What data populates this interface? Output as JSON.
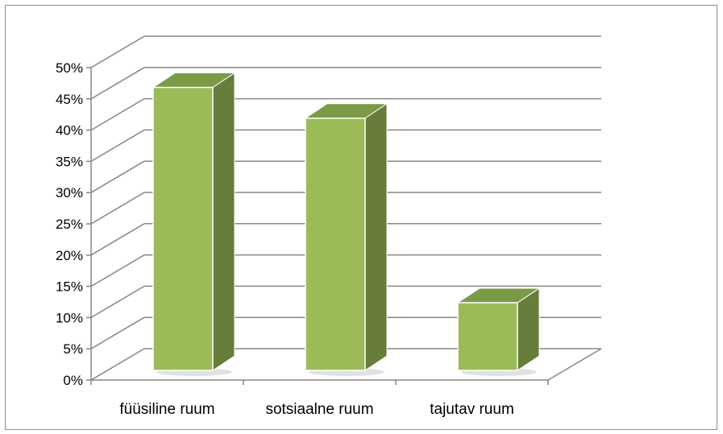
{
  "chart_data": {
    "type": "bar",
    "categories": [
      "füüsiline ruum",
      "sotsiaalne ruum",
      "tajutav ruum"
    ],
    "values": [
      46,
      41,
      11
    ],
    "ylim": [
      0,
      50
    ],
    "yticks": [
      "0%",
      "5%",
      "10%",
      "15%",
      "20%",
      "25%",
      "30%",
      "35%",
      "40%",
      "45%",
      "50%"
    ],
    "grid": true,
    "three_d": true,
    "colors": {
      "bar_front": "#9bbb59",
      "bar_side": "#687c3b",
      "bar_top": "#7a9a45",
      "bar_edge": "#ffffff",
      "grid": "#868686",
      "axis": "#868686"
    }
  }
}
